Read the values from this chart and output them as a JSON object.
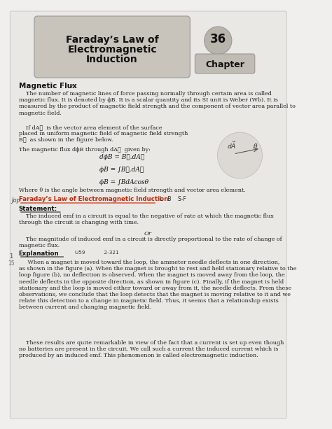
{
  "bg_color": "#f0efed",
  "title_text_line1": "Faraday’s Law of",
  "title_text_line2": "Electromagnetic",
  "title_text_line3": "Induction",
  "chapter_num": "36",
  "chapter_label": "Chapter",
  "section_title": "Magnetic Flux",
  "para1": "    The number of magnetic lines of force passing normally through certain area is called\nmagnetic flux. It is denoted by ϕB. It is a scalar quantity and its SI unit is Weber (Wb). It is\nmeasured by the product of magnetic field strength and the component of vector area parallel to\nmagnetic field.",
  "para2_pre": "    If dA⃗  is the vector area element of the surface\nplaced in uniform magnetic field of magnetic field strength\nB⃗  as shown in the figure below.",
  "para3_pre": "The magnetic flux dϕB through dA⃗  given by:",
  "eq1": "dϕB = B⃗.dA⃗",
  "eq2": "ϕB = ∫B⃗.dA⃗",
  "eq3": "ϕB = ∫BdAcosθ",
  "para4": "Where θ is the angle between magnetic field strength and vector area element.",
  "faraday_heading": "Faraday’s Law of Electromagnetic Induction",
  "faraday_anno": "L   B    S-F",
  "statement_label": "Statement:",
  "statement_text": "    The induced emf in a circuit is equal to the negative of rate at which the magnetic flux\nthrough the circuit is changing with time.",
  "or_text": "Or",
  "para5": "    The magnitude of induced emf in a circuit is directly proportional to the rate of change of\nmagnetic flux.",
  "explanation_label": "Explanation",
  "explanation_anno": "U59            2-321",
  "exp_text": "     When a magnet is moved toward the loop, the ammeter needle deflects in one direction,\nas shown in the figure (a). When the magnet is brought to rest and held stationary relative to the\nloop figure (b), no deflection is observed. When the magnet is moved away from the loop, the\nneedle deflects in the opposite direction, as shown in figure (c). Finally, if the magnet is held\nstationary and the loop is moved either toward or away from it, the needle deflects. From these\nobservations, we conclude that the loop detects that the magnet is moving relative to it and we\nrelate this detection to a change in magnetic field. Thus, it seems that a relationship exists\nbetween current and changing magnetic field.",
  "final_text": "    These results are quite remarkable in view of the fact that a current is set up even though\nno batteries are present in the circuit. We call such a current the induced current which is\nproduced by an induced emf. This phenomenon is called electromagnetic induction.",
  "title_box_color": "#c8c4bc",
  "chapter_circle_color": "#b8b4ac",
  "chapter_box_color": "#c0bcb4"
}
